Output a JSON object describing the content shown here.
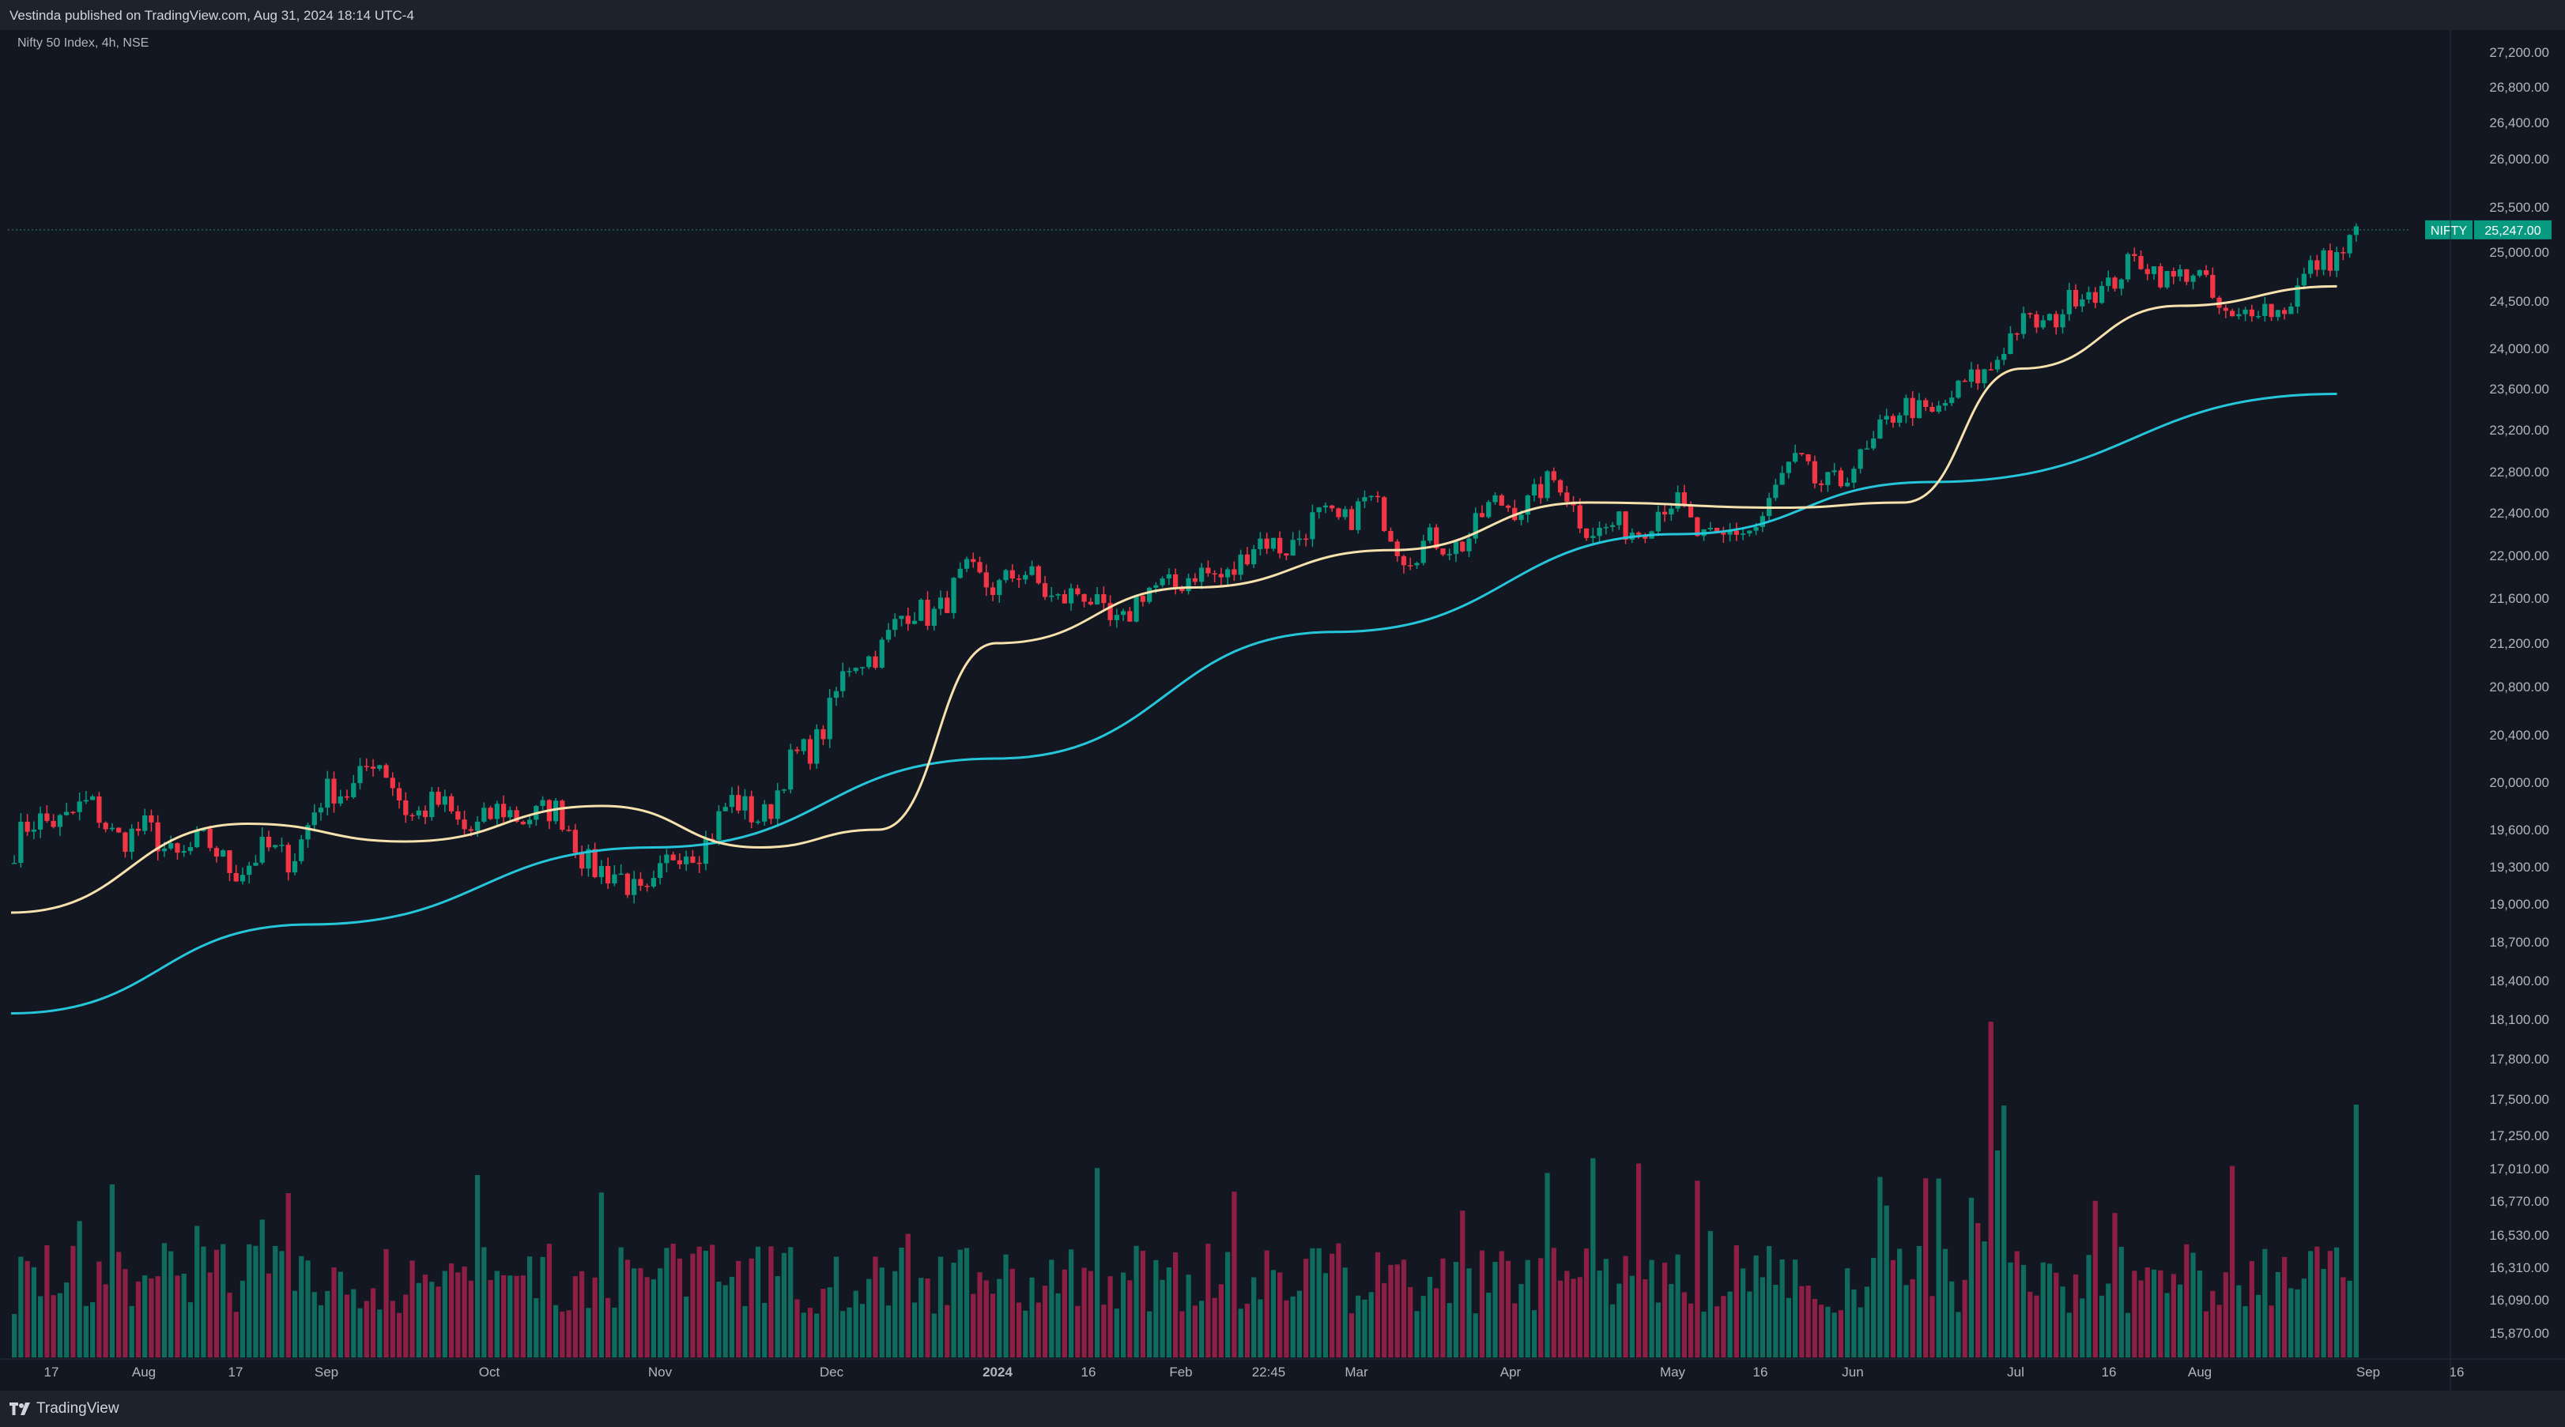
{
  "header": {
    "published_text": "Vestinda published on TradingView.com, Aug 31, 2024 18:14 UTC-4"
  },
  "symbol_info": "Nifty 50 Index, 4h, NSE",
  "price_tag": {
    "symbol": "NIFTY",
    "value": "25,247.00",
    "color": "#089981"
  },
  "footer": {
    "logo_text": "TradingView",
    "logo_icon": "tradingview-logo-icon"
  },
  "colors": {
    "background": "#131722",
    "up": "#089981",
    "down": "#f23645",
    "ma_fast": "#f7e1ad",
    "ma_slow": "#26c6da"
  },
  "chart_data": {
    "type": "line",
    "description_note": "",
    "y_axis_ticks": [
      "27,200.00",
      "26,800.00",
      "26,400.00",
      "26,000.00",
      "25,500.00",
      "25,000.00",
      "24,500.00",
      "24,000.00",
      "23,600.00",
      "23,200.00",
      "22,800.00",
      "22,400.00",
      "22,000.00",
      "21,600.00",
      "21,200.00",
      "20,800.00",
      "20,400.00",
      "20,000.00",
      "19,600.00",
      "19,300.00",
      "19,000.00",
      "18,700.00",
      "18,400.00",
      "18,100.00",
      "17,800.00",
      "17,500.00",
      "17,250.00",
      "17,010.00",
      "16,770.00",
      "16,530.00",
      "16,310.00",
      "16,090.00",
      "15,870.00"
    ],
    "x_axis_ticks": [
      "17",
      "Aug",
      "17",
      "Sep",
      "Oct",
      "Nov",
      "Dec",
      "2024",
      "16",
      "Feb",
      "22:45",
      "Mar",
      "Apr",
      "May",
      "16",
      "Jun",
      "Jul",
      "16",
      "Aug",
      "Sep",
      "16"
    ],
    "series": [
      {
        "type": "candlestick",
        "x": [
          "2023-07-10",
          "2023-07-17",
          "2023-07-24",
          "2023-07-31",
          "2023-08-07",
          "2023-08-14",
          "2023-08-21",
          "2023-08-28",
          "2023-09-04",
          "2023-09-11",
          "2023-09-18",
          "2023-09-25",
          "2023-10-02",
          "2023-10-09",
          "2023-10-16",
          "2023-10-23",
          "2023-10-30",
          "2023-11-06",
          "2023-11-13",
          "2023-11-20",
          "2023-11-27",
          "2023-12-04",
          "2023-12-11",
          "2023-12-18",
          "2023-12-25",
          "2024-01-01",
          "2024-01-08",
          "2024-01-15",
          "2024-01-22",
          "2024-01-29",
          "2024-02-05",
          "2024-02-12",
          "2024-02-19",
          "2024-02-26",
          "2024-03-04",
          "2024-03-11",
          "2024-03-18",
          "2024-03-25",
          "2024-04-01",
          "2024-04-08",
          "2024-04-15",
          "2024-04-22",
          "2024-04-29",
          "2024-05-06",
          "2024-05-13",
          "2024-05-20",
          "2024-05-27",
          "2024-06-03",
          "2024-06-10",
          "2024-06-17",
          "2024-06-24",
          "2024-07-01",
          "2024-07-08",
          "2024-07-15",
          "2024-07-22",
          "2024-07-29",
          "2024-08-05",
          "2024-08-12",
          "2024-08-19",
          "2024-08-26"
        ],
        "close": [
          19450,
          19750,
          19720,
          19550,
          19450,
          19400,
          19300,
          19450,
          19900,
          20150,
          19800,
          19700,
          19650,
          19800,
          19600,
          19150,
          19100,
          19450,
          19750,
          19800,
          20300,
          20900,
          21300,
          21500,
          21750,
          21800,
          21700,
          21550,
          21400,
          21800,
          21750,
          22000,
          22150,
          22300,
          22500,
          22100,
          22050,
          22350,
          22550,
          22650,
          22150,
          22350,
          22450,
          22050,
          22400,
          22900,
          22600,
          23250,
          23400,
          23500,
          24000,
          24300,
          24500,
          24800,
          24850,
          24700,
          24300,
          24450,
          24800,
          25247
        ]
      },
      {
        "name": "",
        "type": "line",
        "x": [
          "2023-07-10",
          "2023-08-21",
          "2023-09-18",
          "2023-10-23",
          "2023-11-20",
          "2023-12-11",
          "2024-01-01",
          "2024-02-05",
          "2024-03-11",
          "2024-04-15",
          "2024-05-20",
          "2024-06-10",
          "2024-07-01",
          "2024-07-29",
          "2024-08-26"
        ],
        "values": [
          18900,
          19650,
          19500,
          19800,
          19450,
          19600,
          21200,
          21700,
          22050,
          22500,
          22450,
          22500,
          23800,
          24450,
          24650
        ]
      },
      {
        "name": "",
        "type": "line",
        "x": [
          "2023-07-10",
          "2023-09-01",
          "2023-11-01",
          "2024-01-01",
          "2024-03-01",
          "2024-05-01",
          "2024-06-15",
          "2024-08-26"
        ],
        "values": [
          18050,
          18800,
          19450,
          20200,
          21300,
          22200,
          22700,
          23550
        ]
      },
      {
        "name": "Volume",
        "type": "bar",
        "note": ""
      }
    ],
    "title": "",
    "xlabel": "",
    "ylabel": "",
    "ylim": [
      15700,
      27400
    ],
    "grid": false,
    "legend": "none"
  }
}
